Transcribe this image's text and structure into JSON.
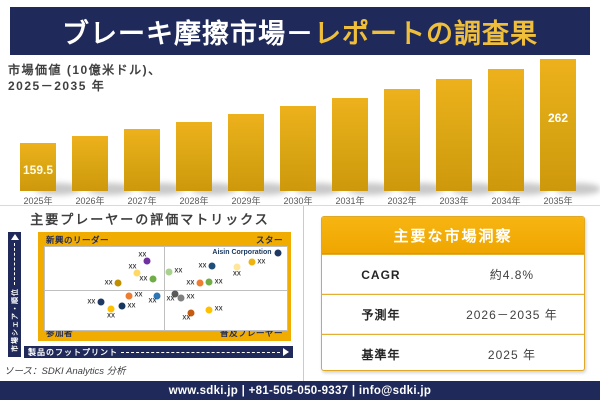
{
  "header": {
    "title_white": "ブレーキ摩擦市場－",
    "title_yellow": "レポートの調査果"
  },
  "chart": {
    "subtitle_line1": "市場価値 (10億米ドル)、",
    "subtitle_line2": "2025－2035 年"
  },
  "chart_data": {
    "type": "bar",
    "title": "市場価値 (10億米ドル)、2025－2035年",
    "categories": [
      "2025年",
      "2026年",
      "2027年",
      "2028年",
      "2029年",
      "2030年",
      "2031年",
      "2032年",
      "2033年",
      "2034年",
      "2035年"
    ],
    "values": [
      159.5,
      167.6,
      176.1,
      185.1,
      194.5,
      204.4,
      214.8,
      225.7,
      237.2,
      249.3,
      262
    ],
    "data_labels_shown": {
      "2025年": "159.5",
      "2035年": "262"
    },
    "xlabel": "",
    "ylabel": "",
    "legend": "none",
    "grid": "off",
    "bar_color": "#D9A513"
  },
  "matrix": {
    "title": "主要プレーヤーの評価マトリックス",
    "y_axis_label": "市場シェア・順位",
    "x_axis_label": "製品のフットプリント",
    "quadrants": {
      "top_left": "新興のリーダー",
      "top_right": "スター",
      "bottom_left": "参加者",
      "bottom_right": "普及プレーヤー"
    },
    "highlight_company": "Aisin Corporation",
    "point_label": "XX",
    "points": [
      {
        "x": 42.1,
        "y": 16.9,
        "c": "#7030A0",
        "pos": "al"
      },
      {
        "x": 38.0,
        "y": 31.3,
        "c": "#FFD966",
        "pos": "al"
      },
      {
        "x": 30.2,
        "y": 43.4,
        "c": "#BF8F00",
        "pos": "l"
      },
      {
        "x": 44.6,
        "y": 38.6,
        "c": "#70AD47",
        "pos": "l"
      },
      {
        "x": 34.7,
        "y": 59.0,
        "c": "#ED7D31",
        "pos": "r"
      },
      {
        "x": 46.3,
        "y": 59.0,
        "c": "#2E75B6",
        "pos": "bl"
      },
      {
        "x": 23.1,
        "y": 66.3,
        "c": "#1F3864",
        "pos": "l"
      },
      {
        "x": 31.8,
        "y": 71.1,
        "c": "#17375E",
        "pos": "r"
      },
      {
        "x": 27.3,
        "y": 74.7,
        "c": "#FFC000",
        "pos": "b"
      },
      {
        "x": 51.2,
        "y": 30.1,
        "c": "#A9D18E",
        "pos": "r"
      },
      {
        "x": 69.0,
        "y": 22.9,
        "c": "#1F4E79",
        "pos": "l"
      },
      {
        "x": 96.3,
        "y": 7.2,
        "c": "#1F3864",
        "pos": "l",
        "company": true
      },
      {
        "x": 85.5,
        "y": 18.1,
        "c": "#EFB310",
        "pos": "r"
      },
      {
        "x": 79.3,
        "y": 24.1,
        "c": "#FFE699",
        "pos": "b"
      },
      {
        "x": 64.0,
        "y": 43.4,
        "c": "#ED7D31",
        "pos": "l"
      },
      {
        "x": 67.8,
        "y": 42.2,
        "c": "#70AD47",
        "pos": "r"
      },
      {
        "x": 53.7,
        "y": 56.6,
        "c": "#595959",
        "pos": "bl"
      },
      {
        "x": 56.2,
        "y": 61.4,
        "c": "#808080",
        "pos": "r"
      },
      {
        "x": 60.3,
        "y": 79.5,
        "c": "#C55A11",
        "pos": "bl"
      },
      {
        "x": 67.8,
        "y": 75.9,
        "c": "#FFC000",
        "pos": "r"
      }
    ]
  },
  "insights": {
    "title": "主要な市場洞察",
    "rows": [
      {
        "label": "CAGR",
        "value": "約4.8%"
      },
      {
        "label": "予測年",
        "value": "2026－2035 年"
      },
      {
        "label": "基準年",
        "value": "2025 年"
      }
    ]
  },
  "source": "ソース：SDKI Analytics 分析",
  "footer": "www.sdki.jp | +81-505-050-9337 | info@sdki.jp",
  "colors": {
    "navy": "#1F2A5A",
    "gold_band": "#F0AC00",
    "bar_gold": "#D9A513",
    "title_gold_text": "#EFBE3A"
  }
}
